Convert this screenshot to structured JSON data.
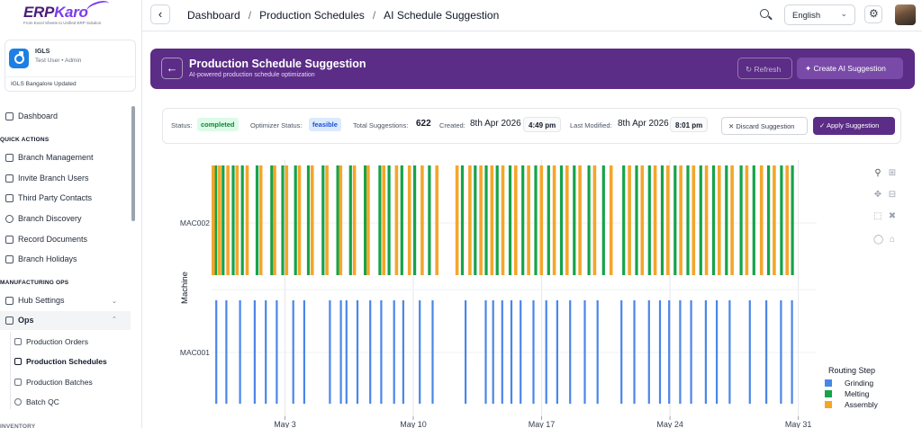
{
  "brand": {
    "name_main": "ERP",
    "name_accent": "Karo",
    "tagline": "From Excel Sheets to Unified ERP Solution"
  },
  "org": {
    "name": "IGLS",
    "user": "Test User • Admin",
    "branch": "IGLS Bangalore Updated"
  },
  "sidebar": {
    "dashboard": "Dashboard",
    "quick_actions_label": "QUICK ACTIONS",
    "quick_actions": [
      "Branch Management",
      "Invite Branch Users",
      "Third Party Contacts",
      "Branch Discovery",
      "Record Documents",
      "Branch Holidays"
    ],
    "manufacturing_label": "MANUFACTURING OPS",
    "hub_settings": "Hub Settings",
    "ops": "Ops",
    "ops_items": [
      "Production Orders",
      "Production Schedules",
      "Production Batches",
      "Batch QC"
    ],
    "cut_label": "INVENTORY"
  },
  "topbar": {
    "breadcrumbs": [
      "Dashboard",
      "Production Schedules",
      "AI Schedule Suggestion"
    ],
    "language": "English"
  },
  "banner": {
    "title": "Production Schedule Suggestion",
    "subtitle": "AI-powered production schedule optimization",
    "refresh_label": "Refresh",
    "create_label": "Create AI Suggestion"
  },
  "status": {
    "status_label": "Status:",
    "status_value": "completed",
    "optimizer_label": "Optimizer Status:",
    "optimizer_value": "feasible",
    "total_label": "Total Suggestions:",
    "total_value": "622",
    "created_label": "Created:",
    "created_date": "8th Apr 2026",
    "created_time": "4:49 pm",
    "modified_label": "Last Modified:",
    "modified_date": "8th Apr 2026",
    "modified_time": "8:01 pm",
    "discard_label": "Discard Suggestion",
    "apply_label": "Apply Suggestion"
  },
  "chart_data": {
    "type": "gantt",
    "ylabel": "Machine",
    "xlabel": "",
    "x_ticks": [
      "May 3",
      "May 10",
      "May 17",
      "May 24",
      "May 31"
    ],
    "x_range": [
      "2026-04-29",
      "2026-06-01"
    ],
    "rows": [
      "MAC002",
      "MAC001"
    ],
    "legend_title": "Routing Step",
    "legend_position": "bottom-right",
    "grid": true,
    "series": [
      {
        "name": "Grinding",
        "color": "#4a86e8",
        "machine": "MAC001",
        "days": [
          0.2,
          0.75,
          1.5,
          2.3,
          2.9,
          3.5,
          4.4,
          5.0,
          6.4,
          7.0,
          7.3,
          7.9,
          8.6,
          9.2,
          9.9,
          10.4,
          11.3,
          12.0,
          13.8,
          14.9,
          15.3,
          15.8,
          16.3,
          16.8,
          17.5,
          18.2,
          18.8,
          19.5,
          20.3,
          21.0,
          22.3,
          23.0,
          23.8,
          24.4,
          24.9,
          25.5,
          26.1,
          26.9,
          27.5,
          28.2,
          29.3,
          30.2,
          31.0,
          31.6
        ]
      },
      {
        "name": "Melting",
        "color": "#16a34a",
        "machine": "MAC002",
        "days": [
          0.15,
          0.55,
          1.1,
          1.6,
          2.4,
          3.2,
          3.8,
          4.5,
          5.2,
          6.0,
          6.8,
          7.5,
          8.3,
          9.1,
          9.6,
          10.3,
          11.0,
          11.8,
          13.6,
          14.3,
          14.9,
          15.5,
          16.2,
          16.9,
          17.6,
          18.3,
          19.0,
          19.7,
          20.5,
          21.3,
          22.4,
          23.1,
          23.8,
          24.5,
          25.2,
          25.9,
          26.6,
          27.3,
          28.0,
          28.8,
          29.5,
          30.3,
          31.0,
          31.6
        ]
      },
      {
        "name": "Assembly",
        "color": "#f4a62a",
        "machine": "MAC002",
        "days": [
          0.0,
          0.35,
          0.8,
          1.3,
          1.85,
          2.6,
          3.35,
          4.0,
          4.7,
          5.4,
          6.2,
          6.95,
          7.7,
          8.45,
          9.3,
          10.0,
          10.7,
          11.4,
          12.2,
          13.3,
          14.0,
          14.6,
          15.2,
          15.8,
          16.5,
          17.2,
          17.9,
          18.6,
          19.3,
          20.0,
          20.8,
          21.7,
          22.7,
          23.4,
          24.1,
          24.8,
          25.5,
          26.2,
          26.9,
          27.6,
          28.3,
          29.1,
          29.9,
          30.6,
          31.3
        ]
      }
    ]
  }
}
